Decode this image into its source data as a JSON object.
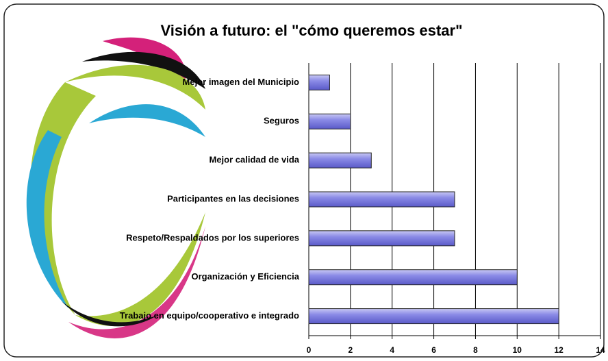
{
  "chart_data": {
    "type": "bar",
    "orientation": "horizontal",
    "title": "Visión a futuro: el \"cómo queremos estar\"",
    "categories": [
      "Mejor imagen del Municipio",
      "Seguros",
      "Mejor calidad de vida",
      "Participantes en las decisiones",
      "Respeto/Respaldados por los superiores",
      "Organización y Eficiencia",
      "Trabajo en equipo/cooperativo e integrado"
    ],
    "values": [
      1,
      2,
      3,
      7,
      7,
      10,
      12
    ],
    "color": "#7b7be0",
    "xlim": [
      0,
      14
    ],
    "xticks": [
      0,
      2,
      4,
      6,
      8,
      10,
      12,
      14
    ],
    "grid": true
  }
}
